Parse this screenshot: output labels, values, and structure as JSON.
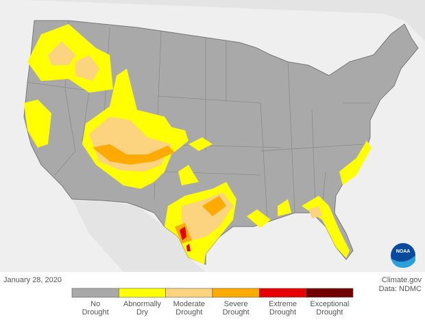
{
  "date": "January 28, 2020",
  "credit": {
    "source": "Climate.gov",
    "data": "Data: NDMC"
  },
  "logo_text": "NOAA",
  "legend": [
    {
      "lines": [
        "No",
        "Drought"
      ],
      "color": "#a9a9a9"
    },
    {
      "lines": [
        "Abnormally",
        "Dry"
      ],
      "color": "#ffff00"
    },
    {
      "lines": [
        "Moderate",
        "Drought"
      ],
      "color": "#fcd37f"
    },
    {
      "lines": [
        "Severe",
        "Drought"
      ],
      "color": "#ffaa00"
    },
    {
      "lines": [
        "Extreme",
        "Drought"
      ],
      "color": "#e60000"
    },
    {
      "lines": [
        "Exceptional",
        "Drought"
      ],
      "color": "#730000"
    }
  ]
}
